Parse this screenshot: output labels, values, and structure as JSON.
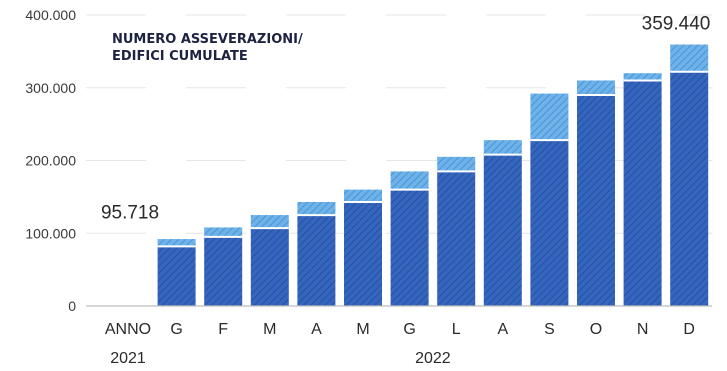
{
  "chart_data": {
    "type": "bar",
    "title_lines": [
      "NUMERO ASSEVERAZIONI/",
      "EDIFICI CUMULATE"
    ],
    "xlabel": "",
    "ylabel": "",
    "ylim": [
      0,
      400000
    ],
    "yticks": [
      0,
      100000,
      200000,
      300000,
      400000
    ],
    "ytick_labels": [
      "0",
      "100.000",
      "200.000",
      "300.000",
      "400.000"
    ],
    "grid": true,
    "categories": [
      "ANNO",
      "G",
      "F",
      "M",
      "A",
      "M",
      "G",
      "L",
      "A",
      "S",
      "O",
      "N",
      "D"
    ],
    "year_labels": [
      "2021",
      "2022"
    ],
    "series": [
      {
        "color": "#3c6fc4",
        "values": [
          95718,
          82000,
          95000,
          107000,
          125000,
          143000,
          160000,
          185000,
          208000,
          228000,
          290000,
          310000,
          322000
        ]
      },
      {
        "color": "#67aee6",
        "values": [
          0,
          10000,
          13000,
          18000,
          18000,
          17000,
          25000,
          20000,
          20000,
          64000,
          20000,
          10000,
          37440
        ]
      }
    ],
    "totals": [
      95718,
      92000,
      108000,
      125000,
      143000,
      160000,
      185000,
      205000,
      228000,
      292000,
      310000,
      320000,
      359440
    ],
    "data_labels": [
      {
        "category_index": 0,
        "text": "95.718"
      },
      {
        "category_index": 12,
        "text": "359.440"
      }
    ]
  }
}
